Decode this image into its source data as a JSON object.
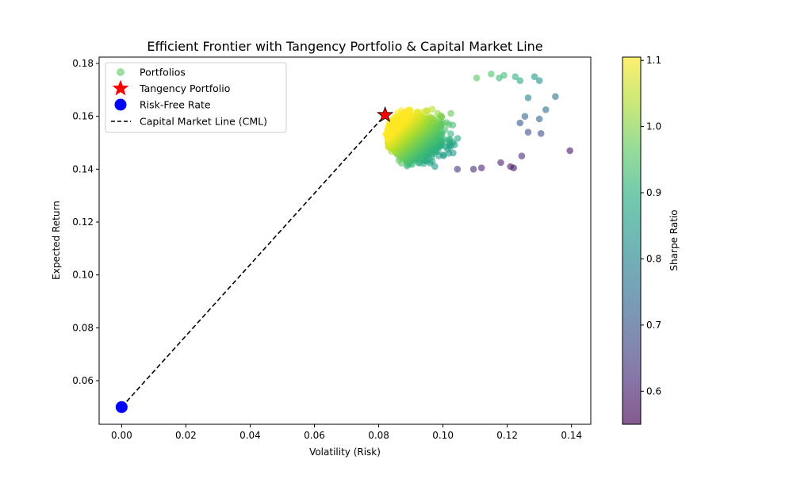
{
  "chart_data": {
    "type": "scatter",
    "title": "Efficient Frontier with Tangency Portfolio & Capital Market Line",
    "xlabel": "Volatility (Risk)",
    "ylabel": "Expected Return",
    "xlim": [
      -0.007,
      0.146
    ],
    "ylim": [
      0.0435,
      0.1824
    ],
    "xticks": [
      "0.00",
      "0.02",
      "0.04",
      "0.06",
      "0.08",
      "0.10",
      "0.12",
      "0.14"
    ],
    "yticks": [
      "0.06",
      "0.08",
      "0.10",
      "0.12",
      "0.14",
      "0.16",
      "0.18"
    ],
    "grid": false,
    "legend_position": "upper-left",
    "colorbar": {
      "label": "Sharpe Ratio",
      "colormap": "viridis",
      "range": [
        0.55,
        1.105
      ],
      "ticks": [
        "0.6",
        "0.7",
        "0.8",
        "0.9",
        "1.0",
        "1.1"
      ]
    },
    "series": [
      {
        "name": "Portfolios",
        "kind": "scatter",
        "color_by": "sharpe",
        "cloud_extent": {
          "volatility": [
            0.082,
            0.125
          ],
          "return": [
            0.14,
            0.176
          ]
        },
        "outliers": [
          {
            "x": 0.1395,
            "y": 0.147,
            "sharpe": 0.58
          },
          {
            "x": 0.135,
            "y": 0.1675,
            "sharpe": 0.76
          },
          {
            "x": 0.132,
            "y": 0.1625,
            "sharpe": 0.75
          },
          {
            "x": 0.13,
            "y": 0.1735,
            "sharpe": 0.83
          },
          {
            "x": 0.1285,
            "y": 0.175,
            "sharpe": 0.85
          },
          {
            "x": 0.1305,
            "y": 0.1535,
            "sharpe": 0.68
          },
          {
            "x": 0.13,
            "y": 0.159,
            "sharpe": 0.72
          },
          {
            "x": 0.1265,
            "y": 0.167,
            "sharpe": 0.8
          },
          {
            "x": 0.1265,
            "y": 0.154,
            "sharpe": 0.68
          },
          {
            "x": 0.122,
            "y": 0.1405,
            "sharpe": 0.58
          },
          {
            "x": 0.1245,
            "y": 0.145,
            "sharpe": 0.62
          },
          {
            "x": 0.124,
            "y": 0.1735,
            "sharpe": 0.88
          },
          {
            "x": 0.1225,
            "y": 0.175,
            "sharpe": 0.9
          },
          {
            "x": 0.119,
            "y": 0.1755,
            "sharpe": 0.93
          },
          {
            "x": 0.1175,
            "y": 0.1745,
            "sharpe": 0.93
          },
          {
            "x": 0.115,
            "y": 0.176,
            "sharpe": 0.95
          },
          {
            "x": 0.1105,
            "y": 0.1745,
            "sharpe": 0.96
          },
          {
            "x": 0.121,
            "y": 0.141,
            "sharpe": 0.59
          },
          {
            "x": 0.118,
            "y": 0.1425,
            "sharpe": 0.6
          },
          {
            "x": 0.112,
            "y": 0.1405,
            "sharpe": 0.61
          },
          {
            "x": 0.1095,
            "y": 0.14,
            "sharpe": 0.62
          },
          {
            "x": 0.1045,
            "y": 0.14,
            "sharpe": 0.63
          },
          {
            "x": 0.124,
            "y": 0.1575,
            "sharpe": 0.7
          },
          {
            "x": 0.1255,
            "y": 0.16,
            "sharpe": 0.73
          }
        ]
      },
      {
        "name": "Tangency Portfolio",
        "kind": "marker",
        "marker": "star",
        "color": "#ff0000",
        "x": 0.082,
        "y": 0.1605
      },
      {
        "name": "Risk-Free Rate",
        "kind": "marker",
        "marker": "circle",
        "color": "#0000ff",
        "x": 0.0,
        "y": 0.05
      },
      {
        "name": "Capital Market Line (CML)",
        "kind": "line",
        "style": "dashed",
        "color": "#000000",
        "x": [
          0.0,
          0.082
        ],
        "y": [
          0.05,
          0.1605
        ]
      }
    ]
  }
}
